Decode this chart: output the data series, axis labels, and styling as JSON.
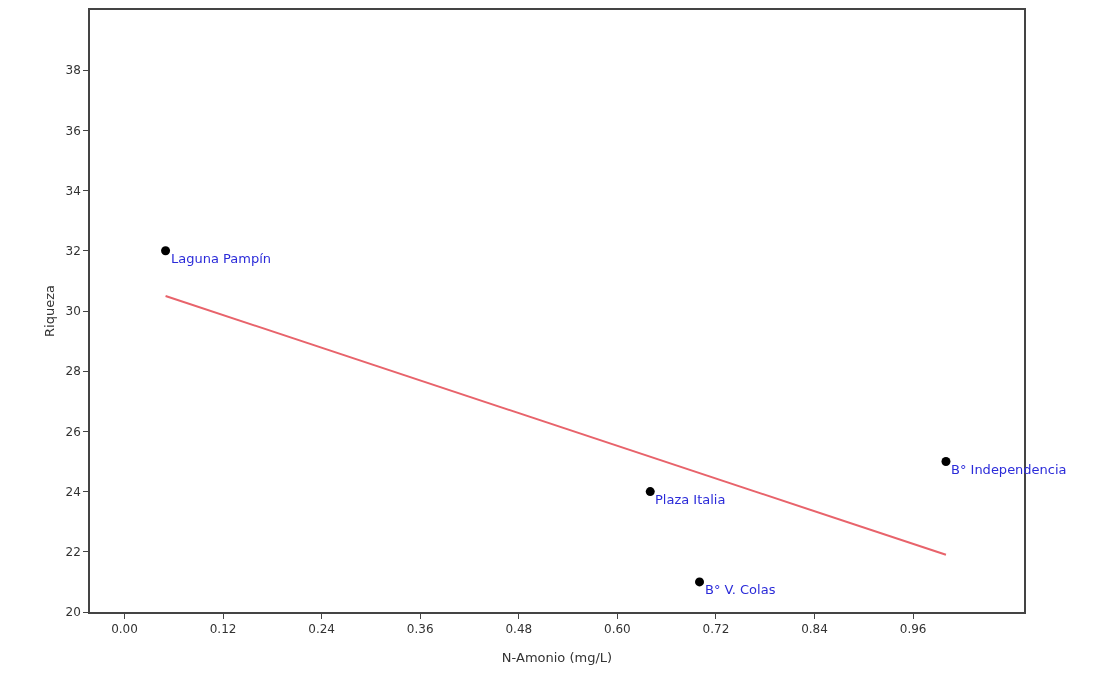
{
  "chart_data": {
    "type": "scatter",
    "xlabel": "N-Amonio (mg/L)",
    "ylabel": "Riqueza",
    "x": [
      0.05,
      0.64,
      0.7,
      1.0
    ],
    "series": [
      {
        "color": "#000000",
        "marker": "circle",
        "values": [
          32,
          24,
          21,
          25
        ]
      },
      {
        "type": "line",
        "color": "#e8636b",
        "x": [
          0.05,
          1.0
        ],
        "values": [
          30.5,
          21.9
        ]
      }
    ],
    "annotations": [
      {
        "text": "Laguna Pampín",
        "x": 0.05,
        "y": 32
      },
      {
        "text": "Plaza Italia",
        "x": 0.64,
        "y": 24
      },
      {
        "text": "B° V. Colas",
        "x": 0.7,
        "y": 21
      },
      {
        "text": "B° Independencia",
        "x": 1.0,
        "y": 25
      }
    ],
    "xlim": [
      -0.042,
      1.095
    ],
    "xticks": [
      {
        "value": 0,
        "label": "0.00"
      },
      {
        "value": 0.12,
        "label": "0.12"
      },
      {
        "value": 0.24,
        "label": "0.24"
      },
      {
        "value": 0.36,
        "label": "0.36"
      },
      {
        "value": 0.48,
        "label": "0.48"
      },
      {
        "value": 0.6,
        "label": "0.60"
      },
      {
        "value": 0.72,
        "label": "0.72"
      },
      {
        "value": 0.84,
        "label": "0.84"
      },
      {
        "value": 0.96,
        "label": "0.96"
      }
    ],
    "ylim": [
      20,
      40
    ],
    "yticks": [
      20,
      22,
      24,
      26,
      28,
      30,
      32,
      34,
      36,
      38
    ],
    "grid": false,
    "legend": false
  }
}
